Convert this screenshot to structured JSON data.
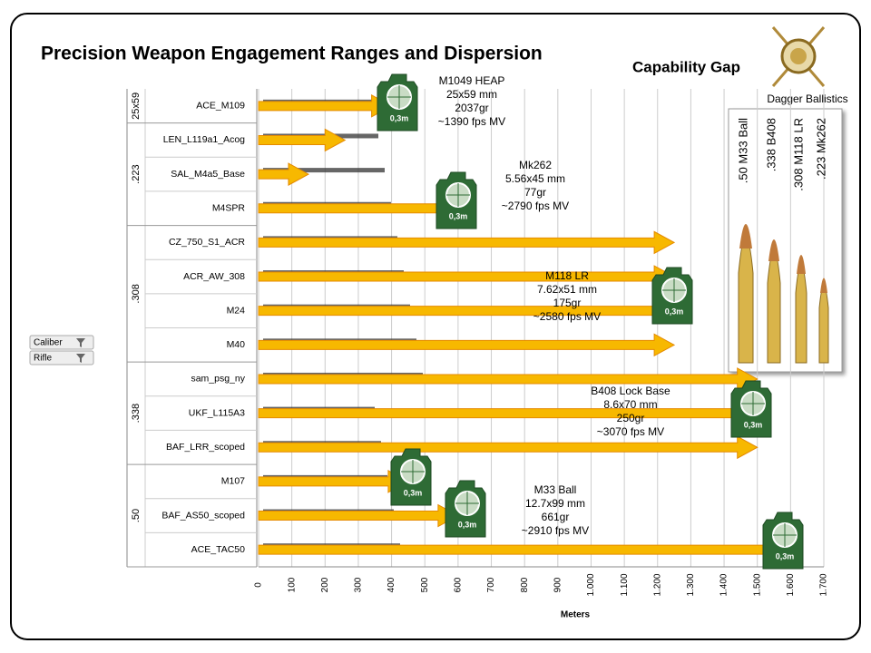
{
  "chart_data": {
    "type": "bar",
    "title": "Precision Weapon Engagement Ranges and Dispersion",
    "subtitle": "Capability Gap",
    "brand": "Dagger Ballistics",
    "x_label": "Meters",
    "categories": [
      "ACE_M109",
      "LEN_L119a1_Acog",
      "SAL_M4a5_Base",
      "M4SPR",
      "CZ_750_S1_ACR",
      "ACR_AW_308",
      "M24",
      "M40",
      "sam_psg_ny",
      "UKF_L115A3",
      "BAF_LRR_scoped",
      "M107",
      "BAF_AS50_scoped",
      "ACE_TAC50"
    ],
    "values": [
      400,
      260,
      150,
      600,
      1250,
      1250,
      1250,
      1250,
      1500,
      1500,
      1500,
      450,
      600,
      1600
    ],
    "color": "#f7b800",
    "groups": [
      "25x59",
      ".223",
      ".308",
      ".338",
      ".50"
    ],
    "xlim": [
      0,
      1700
    ],
    "xticks": [
      0,
      100,
      200,
      300,
      400,
      500,
      600,
      700,
      800,
      900,
      {
        "value": 1000,
        "label": "1.000"
      },
      {
        "value": 1100,
        "label": "1.100"
      },
      {
        "value": 1200,
        "label": "1.200"
      },
      {
        "value": 1300,
        "label": "1.300"
      },
      {
        "value": 1400,
        "label": "1.400"
      },
      {
        "value": 1500,
        "label": "1.500"
      },
      {
        "value": 1600,
        "label": "1.600"
      },
      {
        "value": 1700,
        "label": "1.700"
      }
    ],
    "grid": true,
    "target_label": "0,3m",
    "annotations": [
      [
        "M1049 HEAP",
        "25x59 mm",
        "2037gr",
        "~1390 fps MV"
      ],
      [
        "Mk262",
        "5.56x45 mm",
        "77gr",
        "~2790 fps MV"
      ],
      [
        "M118 LR",
        "7.62x51 mm",
        "175gr",
        "~2580 fps MV"
      ],
      [
        "B408 Lock Base",
        "8.6x70 mm",
        "250gr",
        "~3070 fps MV"
      ],
      [
        "M33 Ball",
        "12.7x99 mm",
        "661gr",
        "~2910 fps MV"
      ]
    ],
    "bullets": [
      ".50 M33 Ball",
      ".338 B408",
      ".308 M118 LR",
      ".223 Mk262"
    ],
    "filters": [
      "Caliber",
      "Rifle"
    ]
  }
}
